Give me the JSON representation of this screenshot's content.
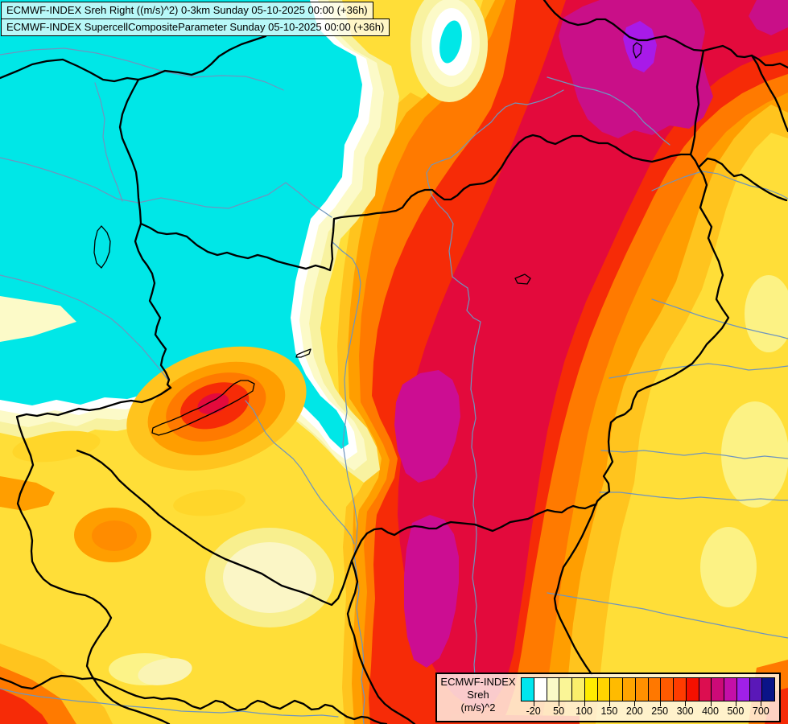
{
  "titles": {
    "line1": "ECMWF-INDEX Sreh Right ((m/s)^2) 0-3km Sunday 05-10-2025 00:00 (+36h)",
    "line2": "ECMWF-INDEX SupercellCompositeParameter Sunday 05-10-2025 00:00 (+36h)"
  },
  "legend": {
    "title": "ECMWF-INDEX",
    "param": "Sreh",
    "units": "(m/s)^2",
    "tick_labels": [
      "-20",
      "50",
      "100",
      "150",
      "200",
      "250",
      "300",
      "400",
      "500",
      "700"
    ],
    "colors": [
      "#00E6EE",
      "#FFFFFF",
      "#FAFAC8",
      "#FAF596",
      "#FAEF6B",
      "#FFEC00",
      "#FFD400",
      "#FFBB00",
      "#FFA500",
      "#FF9000",
      "#FF7800",
      "#FF5A00",
      "#FF3C00",
      "#F51000",
      "#DC0E50",
      "#CC0A78",
      "#C40FA8",
      "#A020E8",
      "#5A18B8",
      "#0A1488"
    ]
  },
  "map": {
    "palette": {
      "cyan_low": "#00E7E7",
      "white_band": "#FFFFFF",
      "cream": "#FCFAC8",
      "pale_yellow": "#F8F2A0",
      "yellow": "#FFDE38",
      "gold": "#FFC41E",
      "orange": "#FF9E00",
      "deep_orange": "#FF7A00",
      "red": "#F62B07",
      "crimson": "#E30A3C",
      "magenta": "#C90F88",
      "violet": "#A81AE8",
      "country_border": "#000000",
      "river": "#6E95BE"
    }
  }
}
